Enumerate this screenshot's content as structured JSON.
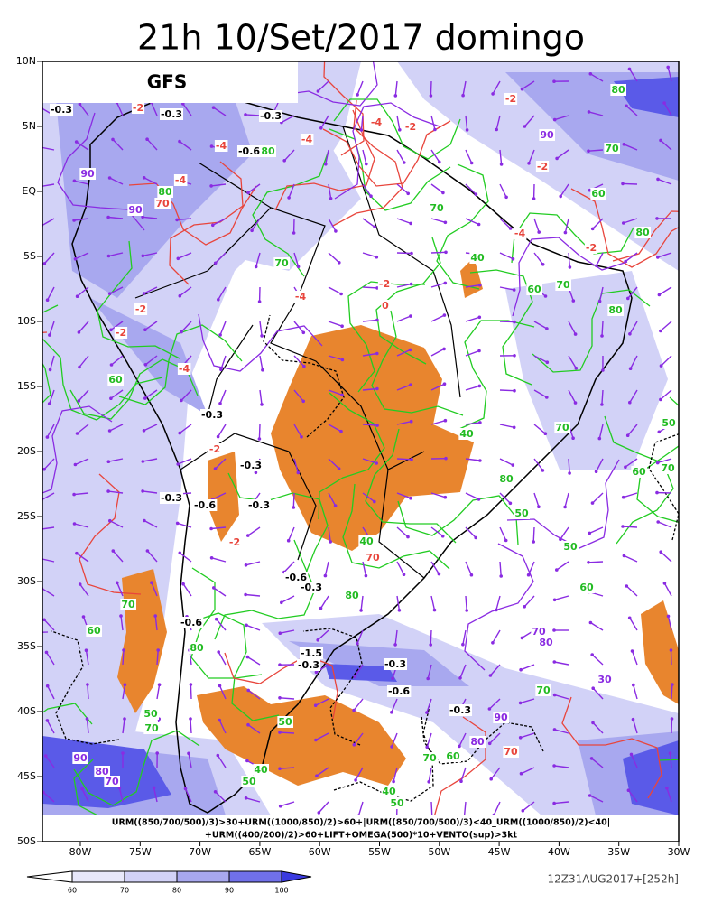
{
  "header": {
    "title": "21h 10/Set/2017 domingo",
    "model_label": "GFS"
  },
  "lat_labels": [
    "10N",
    "5N",
    "EQ",
    "5S",
    "10S",
    "15S",
    "20S",
    "25S",
    "30S",
    "35S",
    "40S",
    "45S",
    "50S"
  ],
  "lon_labels": [
    "80W",
    "75W",
    "70W",
    "65W",
    "60W",
    "55W",
    "50W",
    "45W",
    "40W",
    "35W",
    "30W"
  ],
  "formula": [
    "URM((850/700/500)/3)>30+URM((1000/850)/2)>60+|URM((850/700/500)/3)<40_URM((1000/850)/2)<40|",
    "+URM((400/200)/2)>60+LIFT+OMEGA(500)*10+VENTO(sup)>3kt"
  ],
  "colorbar_ticks": [
    "60",
    "70",
    "80",
    "90",
    "100"
  ],
  "run_info": "12Z31AUG2017+[252h]",
  "contour_labels": [
    "-0.3",
    "-2",
    "-0.3",
    "-0.3",
    "-4",
    "-2",
    "-2",
    "80",
    "90",
    "70",
    "-2",
    "60",
    "-4",
    "-0.6",
    "80",
    "-4",
    "90",
    "-4",
    "80",
    "70",
    "90",
    "70",
    "-4",
    "-2",
    "80",
    "70",
    "-2",
    "-4",
    "0",
    "40",
    "60",
    "70",
    "80",
    "-2",
    "-2",
    "60",
    "-4",
    "-0.3",
    "-2",
    "40",
    "70",
    "50",
    "-0.3",
    "80",
    "60",
    "70",
    "-0.3",
    "-0.6",
    "-0.3",
    "50",
    "-2",
    "40",
    "70",
    "50",
    "-0.6",
    "-0.3",
    "80",
    "60",
    "70",
    "-0.6",
    "60",
    "80",
    "70",
    "80",
    "-1.5",
    "-0.3",
    "-0.3",
    "-0.6",
    "30",
    "70",
    "-0.3",
    "90",
    "90",
    "80",
    "70",
    "70",
    "80",
    "40",
    "50",
    "40",
    "50",
    "50",
    "70",
    "50",
    "70",
    "60"
  ]
}
